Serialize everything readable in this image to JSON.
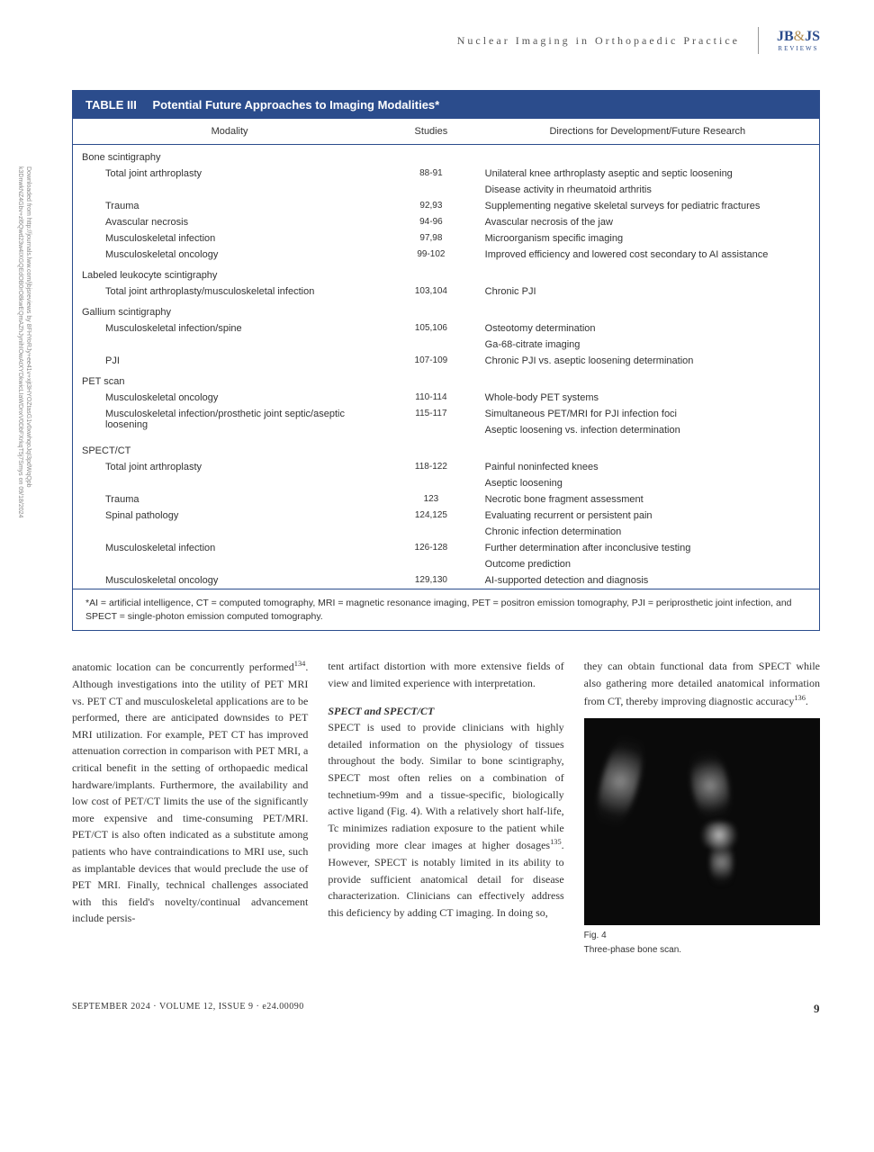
{
  "header": {
    "running_title": "Nuclear Imaging in Orthopaedic Practice",
    "logo_main_left": "JB",
    "logo_main_amp": "&",
    "logo_main_right": "JS",
    "logo_sub": "REVIEWS"
  },
  "watermark": "Downloaded from http://journals.lww.com/jbjsreviews by 8FHYoRJy+ee41v+xjt3HYOZtasG1v0xwhqoJqI3pdWqQpb k3DnwkNZ4Gbv+zl6Qwd23w4IXGQEdOB0rO8kwEQmAZhJynihIOwAtXYDkwicLIaWDnxV0DbFXrkqT5j7Smys on 09/18/2024",
  "table": {
    "number": "TABLE III",
    "title": "Potential Future Approaches to Imaging Modalities*",
    "columns": [
      "Modality",
      "Studies",
      "Directions for Development/Future Research"
    ],
    "groups": [
      {
        "name": "Bone scintigraphy",
        "rows": [
          {
            "modality": "Total joint arthroplasty",
            "studies": "88-91",
            "directions": [
              "Unilateral knee arthroplasty aseptic and septic loosening",
              "Disease activity in rheumatoid arthritis"
            ]
          },
          {
            "modality": "Trauma",
            "studies": "92,93",
            "directions": [
              "Supplementing negative skeletal surveys for pediatric fractures"
            ]
          },
          {
            "modality": "Avascular necrosis",
            "studies": "94-96",
            "directions": [
              "Avascular necrosis of the jaw"
            ]
          },
          {
            "modality": "Musculoskeletal infection",
            "studies": "97,98",
            "directions": [
              "Microorganism specific imaging"
            ]
          },
          {
            "modality": "Musculoskeletal oncology",
            "studies": "99-102",
            "directions": [
              "Improved efficiency and lowered cost secondary to AI assistance"
            ]
          }
        ]
      },
      {
        "name": "Labeled leukocyte scintigraphy",
        "rows": [
          {
            "modality": "Total joint arthroplasty/musculoskeletal infection",
            "studies": "103,104",
            "directions": [
              "Chronic PJI"
            ]
          }
        ]
      },
      {
        "name": "Gallium scintigraphy",
        "rows": [
          {
            "modality": "Musculoskeletal infection/spine",
            "studies": "105,106",
            "directions": [
              "Osteotomy determination",
              "Ga-68-citrate imaging"
            ]
          },
          {
            "modality": "PJI",
            "studies": "107-109",
            "directions": [
              "Chronic PJI vs. aseptic loosening determination"
            ]
          }
        ]
      },
      {
        "name": "PET scan",
        "rows": [
          {
            "modality": "Musculoskeletal oncology",
            "studies": "110-114",
            "directions": [
              "Whole-body PET systems"
            ]
          },
          {
            "modality": "Musculoskeletal infection/prosthetic joint septic/aseptic loosening",
            "studies": "115-117",
            "directions": [
              "Simultaneous PET/MRI for PJI infection foci",
              "Aseptic loosening vs. infection determination"
            ]
          }
        ]
      },
      {
        "name": "SPECT/CT",
        "rows": [
          {
            "modality": "Total joint arthroplasty",
            "studies": "118-122",
            "directions": [
              "Painful noninfected knees",
              "Aseptic loosening"
            ]
          },
          {
            "modality": "Trauma",
            "studies": "123",
            "directions": [
              "Necrotic bone fragment assessment"
            ]
          },
          {
            "modality": "Spinal pathology",
            "studies": "124,125",
            "directions": [
              "Evaluating recurrent or persistent pain",
              "Chronic infection determination"
            ]
          },
          {
            "modality": "Musculoskeletal infection",
            "studies": "126-128",
            "directions": [
              "Further determination after inconclusive testing",
              "Outcome prediction"
            ]
          },
          {
            "modality": "Musculoskeletal oncology",
            "studies": "129,130",
            "directions": [
              "AI-supported detection and diagnosis"
            ]
          }
        ]
      }
    ],
    "footnote": "*AI = artificial intelligence, CT = computed tomography, MRI = magnetic resonance imaging, PET = positron emission tomography, PJI = periprosthetic joint infection, and SPECT = single-photon emission computed tomography."
  },
  "body": {
    "col1": "anatomic location can be concurrently performed<sup>134</sup>. Although investigations into the utility of PET MRI vs. PET CT and musculoskeletal applications are to be performed, there are anticipated downsides to PET MRI utilization. For example, PET CT has improved attenuation correction in comparison with PET MRI, a critical benefit in the setting of orthopaedic medical hardware/implants. Furthermore, the availability and low cost of PET/CT limits the use of the significantly more expensive and time-consuming PET/MRI. PET/CT is also often indicated as a substitute among patients who have contraindications to MRI use, such as implantable devices that would preclude the use of PET MRI. Finally, technical challenges associated with this field's novelty/continual advancement include persis-",
    "col2_before": "tent artifact distortion with more extensive fields of view and limited experience with interpretation.",
    "col2_head": "SPECT and SPECT/CT",
    "col2_after": "SPECT is used to provide clinicians with highly detailed information on the physiology of tissues throughout the body. Similar to bone scintigraphy, SPECT most often relies on a combination of technetium-99m and a tissue-specific, biologically active ligand (Fig. 4). With a relatively short half-life, Tc minimizes radiation exposure to the patient while providing more clear images at higher dosages<sup>135</sup>. However, SPECT is notably limited in its ability to provide sufficient anatomical detail for disease characterization. Clinicians can effectively address this deficiency by adding CT imaging. In doing so,",
    "col3": "they can obtain functional data from SPECT while also gathering more detailed anatomical information from CT, thereby improving diagnostic accuracy<sup>136</sup>."
  },
  "figure": {
    "label": "Fig. 4",
    "caption": "Three-phase bone scan."
  },
  "footer": {
    "left": "SEPTEMBER 2024 · VOLUME 12, ISSUE 9 · e24.00090",
    "page": "9"
  }
}
